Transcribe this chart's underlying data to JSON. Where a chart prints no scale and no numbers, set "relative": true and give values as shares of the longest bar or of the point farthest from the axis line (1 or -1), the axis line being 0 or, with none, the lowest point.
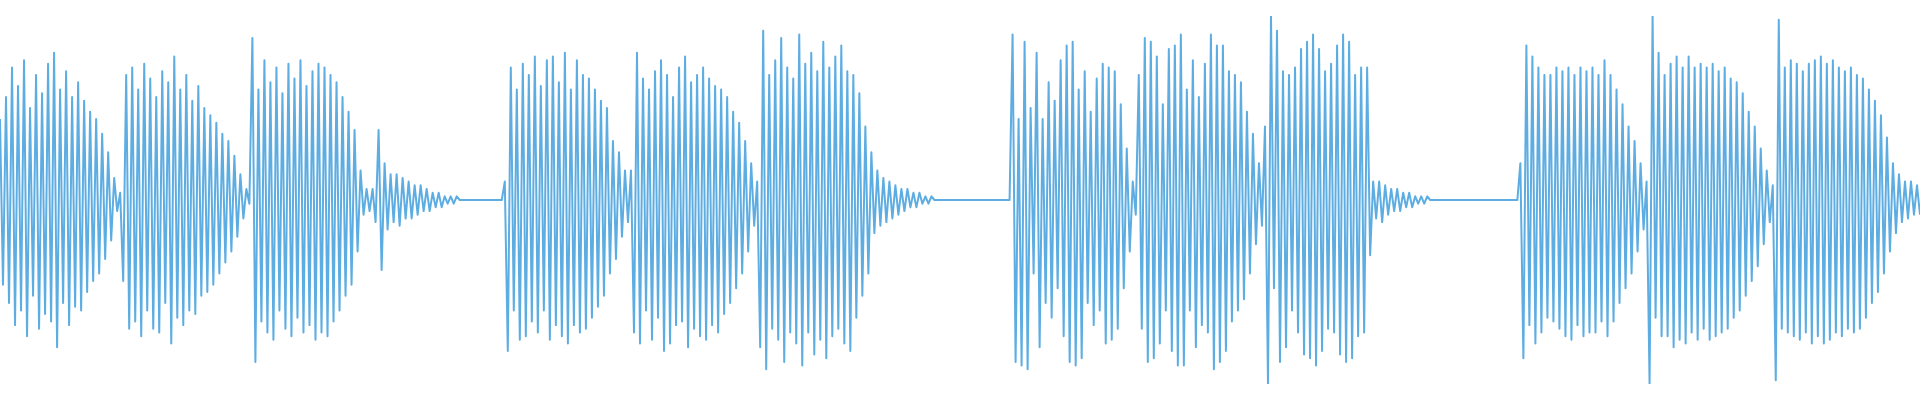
{
  "chart_data": {
    "type": "line",
    "relative": true,
    "color": "#5dade2",
    "categories": [
      null,
      null,
      null,
      null,
      null,
      null,
      null,
      null,
      null,
      null,
      null,
      null,
      null,
      null,
      null,
      null,
      null,
      null,
      null,
      null,
      null,
      null,
      null,
      null,
      null,
      null,
      null,
      null,
      null,
      null,
      null,
      null,
      null,
      null,
      null,
      null,
      null,
      null,
      null,
      null,
      null,
      null,
      null,
      null,
      null,
      null,
      null,
      null,
      null,
      null,
      null,
      null,
      null,
      null,
      null,
      null,
      null,
      null,
      null,
      null,
      null,
      null,
      null,
      null,
      null,
      null,
      null,
      null,
      null,
      null,
      null,
      null,
      null,
      null,
      null,
      null,
      null,
      null,
      null,
      null,
      null,
      null,
      null,
      null,
      null,
      null,
      null,
      null,
      null,
      null,
      null,
      null,
      null,
      null,
      null,
      null,
      null,
      null,
      null,
      null,
      null,
      null,
      null,
      null,
      null,
      null,
      null,
      null,
      null,
      null,
      null,
      null,
      null,
      null,
      null,
      null,
      null,
      null,
      null,
      null,
      null,
      null,
      null,
      null,
      null,
      null,
      null,
      null,
      null,
      null,
      null,
      null,
      null,
      null,
      null,
      null,
      null,
      null,
      null,
      null,
      null,
      null,
      null,
      null,
      null,
      null,
      null,
      null,
      null,
      null,
      null,
      null,
      null,
      null,
      null,
      null,
      null,
      null,
      null,
      null,
      null,
      null,
      null,
      null,
      null,
      null,
      null,
      null,
      null,
      null,
      null,
      null,
      null,
      null,
      null,
      null,
      null,
      null,
      null,
      null,
      null,
      null,
      null,
      null,
      null,
      null,
      null,
      null,
      null,
      null,
      null,
      null,
      null,
      null,
      null,
      null,
      null,
      null,
      null,
      null,
      null,
      null,
      null,
      null,
      null,
      null,
      null,
      null,
      null,
      null,
      null,
      null,
      null,
      null,
      null,
      null,
      null,
      null,
      null,
      null,
      null,
      null,
      null,
      null,
      null,
      null,
      null,
      null,
      null,
      null,
      null,
      null,
      null,
      null,
      null,
      null,
      null,
      null,
      null,
      null,
      null,
      null,
      null,
      null,
      null,
      null,
      null,
      null,
      null,
      null,
      null,
      null,
      null,
      null,
      null,
      null,
      null,
      null,
      null,
      null,
      null,
      null,
      null,
      null,
      null,
      null,
      null,
      null,
      null,
      null,
      null,
      null,
      null,
      null,
      null,
      null,
      null,
      null,
      null,
      null,
      null,
      null,
      null,
      null,
      null,
      null,
      null,
      null,
      null,
      null,
      null,
      null,
      null,
      null,
      null,
      null,
      null,
      null,
      null,
      null,
      null,
      null,
      null,
      null,
      null,
      null,
      null,
      null,
      null,
      null,
      null,
      null,
      null,
      null,
      null,
      null,
      null,
      null,
      null,
      null,
      null,
      null,
      null,
      null,
      null,
      null,
      null,
      null,
      null,
      null,
      null,
      null,
      null,
      null,
      null,
      null,
      null,
      null,
      null,
      null,
      null,
      null,
      null,
      null,
      null,
      null,
      null,
      null,
      null,
      null,
      null,
      null,
      null,
      null,
      null,
      null,
      null,
      null,
      null,
      null,
      null,
      null,
      null,
      null,
      null,
      null,
      null,
      null,
      null,
      null,
      null,
      null,
      null,
      null,
      null,
      null,
      null,
      null,
      null,
      null,
      null,
      null,
      null,
      null,
      null,
      null,
      null,
      null,
      null,
      null,
      null,
      null,
      null,
      null,
      null,
      null,
      null,
      null,
      null,
      null,
      null,
      null,
      null,
      null,
      null,
      null,
      null,
      null,
      null,
      null,
      null,
      null,
      null,
      null,
      null,
      null,
      null,
      null,
      null,
      null,
      null,
      null,
      null,
      null,
      null,
      null,
      null,
      null,
      null,
      null,
      null,
      null,
      null,
      null,
      null,
      null,
      null,
      null,
      null,
      null,
      null,
      null,
      null,
      null,
      null,
      null,
      null,
      null,
      null,
      null,
      null,
      null,
      null,
      null,
      null,
      null,
      null,
      null,
      null,
      null,
      null,
      null,
      null,
      null,
      null,
      null,
      null,
      null,
      null,
      null,
      null,
      null,
      null,
      null,
      null,
      null,
      null,
      null,
      null,
      null,
      null,
      null,
      null,
      null,
      null,
      null,
      null,
      null,
      null,
      null,
      null,
      null,
      null,
      null,
      null,
      null,
      null,
      null,
      null,
      null,
      null,
      null,
      null,
      null,
      null,
      null,
      null,
      null,
      null,
      null,
      null,
      null,
      null,
      null,
      null,
      null,
      null,
      null,
      null,
      null,
      null,
      null,
      null,
      null,
      null,
      null,
      null,
      null,
      null,
      null,
      null,
      null,
      null,
      null,
      null,
      null,
      null,
      null,
      null,
      null,
      null,
      null,
      null,
      null,
      null,
      null,
      null,
      null,
      null,
      null,
      null,
      null,
      null,
      null,
      null,
      null,
      null,
      null,
      null,
      null,
      null,
      null,
      null,
      null,
      null,
      null,
      null,
      null,
      null,
      null,
      null,
      null,
      null,
      null,
      null,
      null,
      null,
      null,
      null,
      null,
      null,
      null,
      null,
      null,
      null,
      null,
      null,
      null,
      null,
      null,
      null,
      null,
      null,
      null,
      null,
      null,
      null,
      null,
      null,
      null,
      null,
      null,
      null,
      null,
      null,
      null,
      null,
      null,
      null,
      null,
      null,
      null,
      null,
      null,
      null,
      null,
      null,
      null,
      null,
      null,
      null,
      null,
      null,
      null,
      null,
      null,
      null,
      null,
      null,
      null,
      null,
      null,
      null,
      null,
      null,
      null,
      null,
      null,
      null,
      null
    ],
    "values": [
      0.72,
      0.27,
      0.78,
      0.22,
      0.86,
      0.16,
      0.81,
      0.2,
      0.88,
      0.13,
      0.75,
      0.24,
      0.84,
      0.15,
      0.79,
      0.19,
      0.87,
      0.17,
      0.9,
      0.1,
      0.8,
      0.22,
      0.85,
      0.16,
      0.78,
      0.21,
      0.82,
      0.2,
      0.77,
      0.25,
      0.74,
      0.28,
      0.72,
      0.3,
      0.68,
      0.34,
      0.63,
      0.39,
      0.56,
      0.47,
      0.52,
      0.28,
      0.84,
      0.15,
      0.86,
      0.17,
      0.8,
      0.13,
      0.87,
      0.2,
      0.83,
      0.15,
      0.78,
      0.14,
      0.85,
      0.22,
      0.82,
      0.11,
      0.89,
      0.18,
      0.8,
      0.16,
      0.84,
      0.2,
      0.77,
      0.19,
      0.81,
      0.24,
      0.75,
      0.25,
      0.73,
      0.27,
      0.71,
      0.3,
      0.68,
      0.33,
      0.66,
      0.36,
      0.62,
      0.4,
      0.57,
      0.45,
      0.53,
      0.49,
      0.94,
      0.06,
      0.8,
      0.17,
      0.88,
      0.14,
      0.82,
      0.12,
      0.86,
      0.2,
      0.79,
      0.15,
      0.87,
      0.13,
      0.83,
      0.18,
      0.88,
      0.14,
      0.81,
      0.16,
      0.85,
      0.12,
      0.87,
      0.14,
      0.86,
      0.13,
      0.84,
      0.17,
      0.82,
      0.2,
      0.78,
      0.24,
      0.74,
      0.27,
      0.69,
      0.36,
      0.58,
      0.46,
      0.53,
      0.47,
      0.53,
      0.44,
      0.69,
      0.31,
      0.6,
      0.42,
      0.57,
      0.44,
      0.57,
      0.43,
      0.56,
      0.45,
      0.55,
      0.45,
      0.54,
      0.46,
      0.54,
      0.47,
      0.53,
      0.47,
      0.52,
      0.48,
      0.52,
      0.48,
      0.51,
      0.49,
      0.51,
      0.49,
      0.51,
      0.5,
      0.5,
      0.5,
      0.5,
      0.5,
      0.5,
      0.5,
      0.5,
      0.5,
      0.5,
      0.5,
      0.5,
      0.5,
      0.5,
      0.5,
      0.55,
      0.09,
      0.86,
      0.2,
      0.8,
      0.12,
      0.87,
      0.13,
      0.84,
      0.17,
      0.89,
      0.14,
      0.81,
      0.2,
      0.88,
      0.12,
      0.89,
      0.16,
      0.82,
      0.13,
      0.9,
      0.11,
      0.8,
      0.16,
      0.88,
      0.14,
      0.84,
      0.15,
      0.83,
      0.18,
      0.8,
      0.21,
      0.77,
      0.24,
      0.75,
      0.3,
      0.66,
      0.34,
      0.63,
      0.4,
      0.58,
      0.44,
      0.58,
      0.14,
      0.9,
      0.11,
      0.83,
      0.2,
      0.8,
      0.12,
      0.85,
      0.18,
      0.88,
      0.09,
      0.84,
      0.11,
      0.78,
      0.16,
      0.86,
      0.17,
      0.89,
      0.1,
      0.82,
      0.15,
      0.84,
      0.13,
      0.86,
      0.12,
      0.83,
      0.16,
      0.81,
      0.14,
      0.8,
      0.19,
      0.78,
      0.22,
      0.74,
      0.26,
      0.71,
      0.3,
      0.66,
      0.36,
      0.6,
      0.43,
      0.55,
      0.1,
      0.96,
      0.04,
      0.84,
      0.15,
      0.88,
      0.12,
      0.94,
      0.06,
      0.86,
      0.14,
      0.83,
      0.11,
      0.95,
      0.05,
      0.87,
      0.14,
      0.9,
      0.08,
      0.85,
      0.12,
      0.93,
      0.07,
      0.86,
      0.13,
      0.89,
      0.15,
      0.92,
      0.11,
      0.85,
      0.09,
      0.84,
      0.18,
      0.79,
      0.24,
      0.7,
      0.3,
      0.63,
      0.41,
      0.58,
      0.43,
      0.56,
      0.44,
      0.55,
      0.45,
      0.54,
      0.46,
      0.53,
      0.47,
      0.53,
      0.48,
      0.52,
      0.48,
      0.52,
      0.49,
      0.51,
      0.49,
      0.51,
      0.5,
      0.5,
      0.5,
      0.5,
      0.5,
      0.5,
      0.5,
      0.5,
      0.5,
      0.5,
      0.5,
      0.5,
      0.5,
      0.5,
      0.5,
      0.5,
      0.5,
      0.5,
      0.5,
      0.5,
      0.5,
      0.5,
      0.5,
      0.5,
      0.5,
      0.5,
      0.95,
      0.06,
      0.72,
      0.05,
      0.93,
      0.04,
      0.75,
      0.3,
      0.9,
      0.1,
      0.72,
      0.22,
      0.82,
      0.18,
      0.77,
      0.26,
      0.88,
      0.13,
      0.92,
      0.06,
      0.93,
      0.05,
      0.8,
      0.07,
      0.85,
      0.22,
      0.74,
      0.16,
      0.83,
      0.2,
      0.87,
      0.11,
      0.86,
      0.12,
      0.85,
      0.15,
      0.76,
      0.26,
      0.64,
      0.36,
      0.55,
      0.46,
      0.84,
      0.15,
      0.94,
      0.06,
      0.93,
      0.07,
      0.89,
      0.11,
      0.76,
      0.2,
      0.91,
      0.09,
      0.92,
      0.05,
      0.95,
      0.05,
      0.8,
      0.2,
      0.88,
      0.1,
      0.78,
      0.16,
      0.87,
      0.14,
      0.95,
      0.04,
      0.92,
      0.06,
      0.92,
      0.09,
      0.85,
      0.17,
      0.84,
      0.2,
      0.82,
      0.23,
      0.74,
      0.3,
      0.68,
      0.38,
      0.6,
      0.43,
      0.7,
      0,
      1,
      0.26,
      0.96,
      0.06,
      0.85,
      0.1,
      0.84,
      0.2,
      0.86,
      0.14,
      0.91,
      0.08,
      0.93,
      0.07,
      0.95,
      0.05,
      0.91,
      0.09,
      0.85,
      0.15,
      0.87,
      0.14,
      0.92,
      0.08,
      0.95,
      0.06,
      0.93,
      0.07,
      0.84,
      0.13,
      0.86,
      0.14,
      0.86,
      0.35,
      0.55,
      0.45,
      0.55,
      0.44,
      0.54,
      0.46,
      0.53,
      0.47,
      0.53,
      0.47,
      0.52,
      0.48,
      0.52,
      0.48,
      0.51,
      0.49,
      0.51,
      0.49,
      0.51,
      0.5,
      0.5,
      0.5,
      0.5,
      0.5,
      0.5,
      0.5,
      0.5,
      0.5,
      0.5,
      0.5,
      0.5,
      0.5,
      0.5,
      0.5,
      0.5,
      0.5,
      0.5,
      0.5,
      0.5,
      0.5,
      0.5,
      0.5,
      0.5,
      0.5,
      0.5,
      0.5,
      0.5,
      0.5,
      0.5,
      0.6,
      0.07,
      0.92,
      0.16,
      0.89,
      0.11,
      0.86,
      0.14,
      0.84,
      0.18,
      0.84,
      0.17,
      0.86,
      0.15,
      0.85,
      0.13,
      0.86,
      0.12,
      0.84,
      0.16,
      0.86,
      0.13,
      0.85,
      0.14,
      0.86,
      0.14,
      0.84,
      0.17,
      0.88,
      0.13,
      0.84,
      0.17,
      0.8,
      0.22,
      0.76,
      0.26,
      0.7,
      0.3,
      0.66,
      0.36,
      0.6,
      0.42,
      0.55,
      0,
      1,
      0.18,
      0.9,
      0.13,
      0.84,
      0.13,
      0.87,
      0.1,
      0.89,
      0.12,
      0.86,
      0.11,
      0.89,
      0.14,
      0.86,
      0.12,
      0.87,
      0.15,
      0.86,
      0.12,
      0.87,
      0.13,
      0.85,
      0.14,
      0.86,
      0.15,
      0.83,
      0.18,
      0.82,
      0.2,
      0.79,
      0.24,
      0.74,
      0.28,
      0.7,
      0.32,
      0.64,
      0.38,
      0.58,
      0.44,
      0.54,
      0.01,
      0.99,
      0.15,
      0.86,
      0.14,
      0.88,
      0.13,
      0.87,
      0.12,
      0.85,
      0.14,
      0.87,
      0.11,
      0.88,
      0.13,
      0.89,
      0.11,
      0.87,
      0.12,
      0.88,
      0.14,
      0.86,
      0.13,
      0.85,
      0.15,
      0.86,
      0.14,
      0.84,
      0.15,
      0.83,
      0.18,
      0.8,
      0.22,
      0.77,
      0.25,
      0.73,
      0.3,
      0.67,
      0.36,
      0.6,
      0.41,
      0.57,
      0.44,
      0.55,
      0.45,
      0.55,
      0.46,
      0.54,
      0.46
    ]
  }
}
